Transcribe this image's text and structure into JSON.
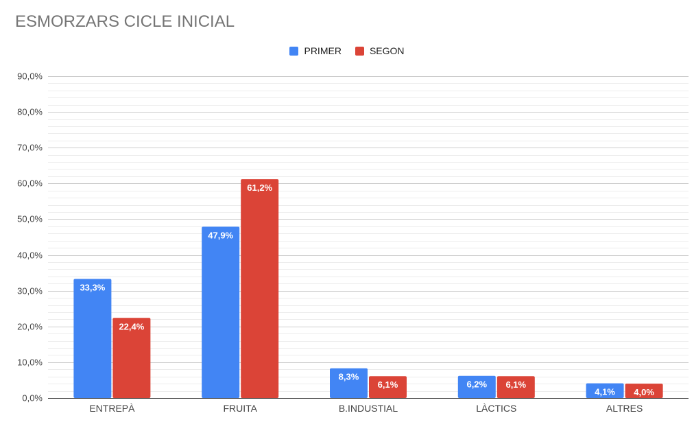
{
  "chart_data": {
    "type": "bar",
    "title": "ESMORZARS CICLE INICIAL",
    "categories": [
      "ENTREPÀ",
      "FRUITA",
      "B.INDUSTIAL",
      "LÀCTICS",
      "ALTRES"
    ],
    "series": [
      {
        "name": "PRIMER",
        "color": "#4285f4",
        "values": [
          33.3,
          47.9,
          8.3,
          6.2,
          4.1
        ],
        "labels": [
          "33,3%",
          "47,9%",
          "8,3%",
          "6,2%",
          "4,1%"
        ]
      },
      {
        "name": "SEGON",
        "color": "#db4437",
        "values": [
          22.4,
          61.2,
          6.1,
          6.1,
          4.0
        ],
        "labels": [
          "22,4%",
          "61,2%",
          "6,1%",
          "6,1%",
          "4,0%"
        ]
      }
    ],
    "ylim": [
      0,
      90
    ],
    "yticks": [
      0,
      10,
      20,
      30,
      40,
      50,
      60,
      70,
      80,
      90
    ],
    "ytick_labels": [
      "0,0%",
      "10,0%",
      "20,0%",
      "30,0%",
      "40,0%",
      "50,0%",
      "60,0%",
      "70,0%",
      "80,0%",
      "90,0%"
    ],
    "minor_gridlines": true,
    "legend_position": "top-center",
    "xlabel": "",
    "ylabel": ""
  }
}
